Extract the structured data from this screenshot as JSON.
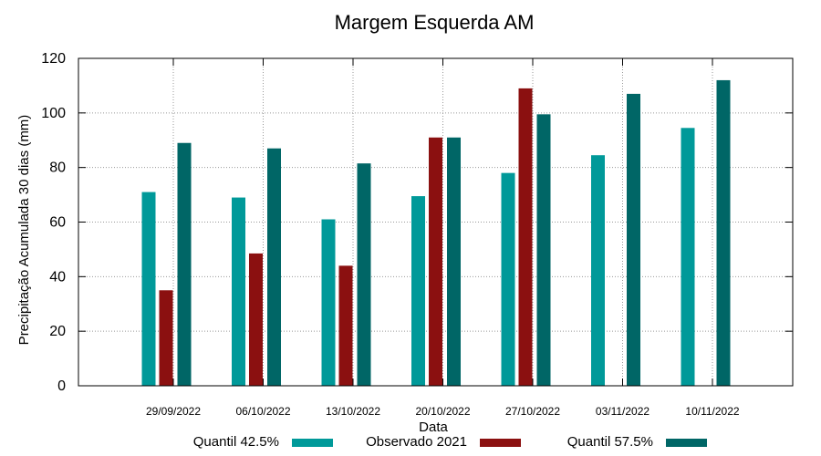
{
  "chart_data": {
    "type": "bar",
    "title": "Margem Esquerda AM",
    "xlabel": "Data",
    "ylabel": "Precipitação Acumulada 30 dias (mm)",
    "ylim": [
      0,
      120
    ],
    "yticks": [
      0,
      20,
      40,
      60,
      80,
      100,
      120
    ],
    "grid": true,
    "legend_position": "bottom",
    "categories": [
      "29/09/2022",
      "06/10/2022",
      "13/10/2022",
      "20/10/2022",
      "27/10/2022",
      "03/11/2022",
      "10/11/2022"
    ],
    "series": [
      {
        "name": "Quantil 42.5%",
        "color": "#009999",
        "values": [
          71,
          69,
          61,
          69.5,
          78,
          84.5,
          94.5
        ]
      },
      {
        "name": "Observado 2021",
        "color": "#8b1010",
        "values": [
          35,
          48.5,
          44,
          91,
          109,
          null,
          null
        ]
      },
      {
        "name": "Quantil 57.5%",
        "color": "#006666",
        "values": [
          89,
          87,
          81.5,
          91,
          99.5,
          107,
          112
        ]
      }
    ]
  }
}
